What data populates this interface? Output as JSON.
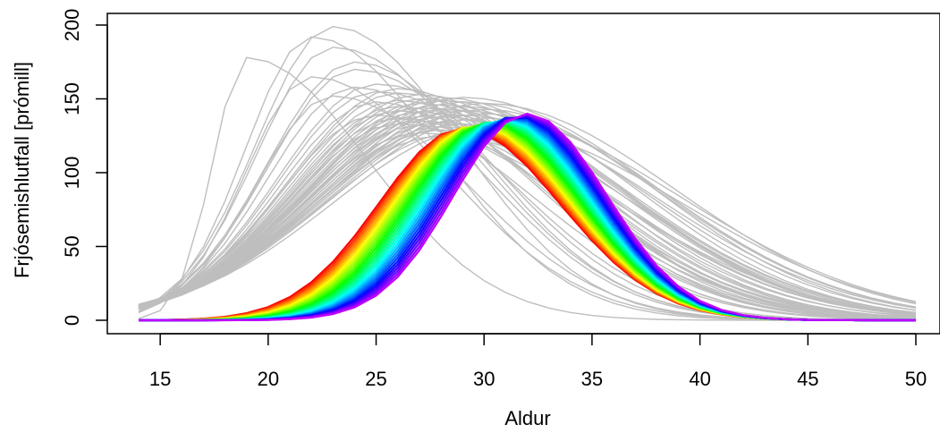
{
  "chart_data": {
    "type": "line",
    "title": "",
    "xlabel": "Aldur",
    "ylabel": "Frjósemishlutfall [prómill]",
    "xlim": [
      14,
      50
    ],
    "ylim": [
      0,
      200
    ],
    "xticks": [
      15,
      20,
      25,
      30,
      35,
      40,
      45,
      50
    ],
    "yticks": [
      0,
      50,
      100,
      150,
      200
    ],
    "grid": false,
    "legend": "none",
    "background_series": {
      "color": "#bebebe",
      "peaks": [
        [
          23,
          199
        ],
        [
          22,
          192
        ],
        [
          23,
          185
        ],
        [
          19,
          178
        ],
        [
          24,
          175
        ],
        [
          24,
          170
        ],
        [
          22,
          165
        ],
        [
          25,
          160
        ],
        [
          24,
          158
        ],
        [
          26,
          157
        ],
        [
          25,
          155
        ],
        [
          26,
          154
        ],
        [
          27,
          153
        ],
        [
          23,
          152
        ],
        [
          28,
          151
        ],
        [
          29,
          151
        ],
        [
          27,
          150
        ],
        [
          26,
          149
        ],
        [
          28,
          149
        ],
        [
          29,
          148
        ],
        [
          25,
          148
        ],
        [
          27,
          147
        ],
        [
          30,
          147
        ],
        [
          28,
          146
        ],
        [
          26,
          145
        ],
        [
          29,
          145
        ],
        [
          27,
          144
        ],
        [
          28,
          143
        ],
        [
          30,
          143
        ],
        [
          26,
          142
        ],
        [
          29,
          142
        ],
        [
          27,
          141
        ],
        [
          28,
          140
        ],
        [
          30,
          140
        ],
        [
          25,
          139
        ],
        [
          29,
          139
        ],
        [
          27,
          138
        ],
        [
          28,
          138
        ],
        [
          26,
          137
        ],
        [
          30,
          137
        ],
        [
          29,
          136
        ],
        [
          27,
          135
        ],
        [
          28,
          134
        ],
        [
          26,
          133
        ],
        [
          29,
          133
        ],
        [
          27,
          132
        ],
        [
          28,
          131
        ],
        [
          30,
          131
        ],
        [
          28,
          129
        ],
        [
          29,
          128
        ],
        [
          27,
          127
        ],
        [
          28,
          125
        ]
      ]
    },
    "rainbow_series": {
      "count": 30,
      "peak_age": [
        29.0,
        32.0
      ],
      "peak_value": [
        130,
        140
      ],
      "width_left": [
        5.5,
        4.8
      ],
      "width_right": [
        6.4,
        5.2
      ],
      "hue_range": [
        0,
        285
      ]
    }
  }
}
